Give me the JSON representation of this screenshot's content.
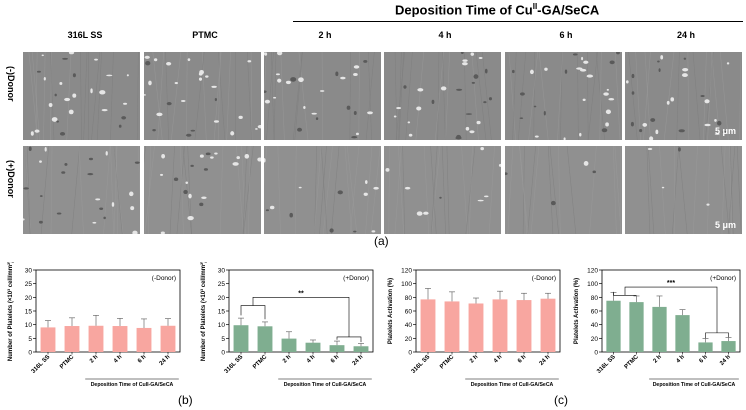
{
  "micrographs": {
    "group_title_prefix": "Deposition Time of Cu",
    "group_title_sup": "II",
    "group_title_suffix": "-GA/SeCA",
    "columns": [
      "316L SS",
      "PTMC",
      "2 h",
      "4 h",
      "6 h",
      "24 h"
    ],
    "rows": [
      "(-)Donor",
      "(+)Donor"
    ],
    "scale_bar": "5 μm",
    "panel_label": "(a)"
  },
  "panel_labels": {
    "b": "(b)",
    "c": "(c)"
  },
  "colors": {
    "pink": "#f8a6a0",
    "green": "#7fae90",
    "axis": "#000000"
  },
  "chart_data": [
    {
      "type": "bar",
      "id": "count-minus",
      "color": "pink",
      "categories": [
        "316L SS",
        "PTMC",
        "2 h",
        "4 h",
        "6 h",
        "24 h"
      ],
      "values": [
        9.0,
        9.5,
        9.6,
        9.5,
        8.8,
        9.6
      ],
      "errors": [
        2.5,
        3.0,
        3.8,
        2.8,
        3.3,
        2.6
      ],
      "ylabel": "Number of Platelets (×10³ cell/mm²)",
      "xlabel": "Deposition Time of CuII-GA/SeCA",
      "ylim": [
        0,
        30
      ],
      "yticks": [
        0,
        5,
        10,
        15,
        20,
        25,
        30
      ],
      "annotation": "(-Donor)",
      "brackets": []
    },
    {
      "type": "bar",
      "id": "count-plus",
      "color": "green",
      "categories": [
        "316L SS",
        "PTMC",
        "2 h",
        "4 h",
        "6 h",
        "24 h"
      ],
      "values": [
        9.8,
        9.4,
        4.9,
        3.4,
        2.5,
        2.1
      ],
      "errors": [
        2.6,
        1.6,
        2.5,
        1.0,
        1.5,
        1.0
      ],
      "ylabel": "Number of Platelets (×10³ cell/mm²)",
      "xlabel": "Deposition Time of CuII-GA/SeCA",
      "ylim": [
        0,
        30
      ],
      "yticks": [
        0,
        5,
        10,
        15,
        20,
        25,
        30
      ],
      "annotation": "(+Donor)",
      "brackets": [
        {
          "label": "**",
          "level": 20,
          "left": [
            0,
            1
          ],
          "right": [
            4,
            5
          ]
        }
      ]
    },
    {
      "type": "bar",
      "id": "act-minus",
      "color": "pink",
      "categories": [
        "316L SS",
        "PTMC",
        "2 h",
        "4 h",
        "6 h",
        "24 h"
      ],
      "values": [
        77,
        74,
        71,
        77,
        76,
        78
      ],
      "errors": [
        16,
        14,
        8,
        12,
        10,
        8
      ],
      "ylabel": "Platelets Activation (%)",
      "xlabel": "Deposition Time of CuII-GA/SeCA",
      "ylim": [
        0,
        120
      ],
      "yticks": [
        0,
        20,
        40,
        60,
        80,
        100,
        120
      ],
      "annotation": "(-Donor)",
      "brackets": []
    },
    {
      "type": "bar",
      "id": "act-plus",
      "color": "green",
      "categories": [
        "316L SS",
        "PTMC",
        "2 h",
        "4 h",
        "6 h",
        "24 h"
      ],
      "values": [
        75,
        73,
        66,
        54,
        14,
        16
      ],
      "errors": [
        12,
        9,
        16,
        8,
        6,
        5
      ],
      "ylabel": "Platelets Activation (%)",
      "xlabel": "Deposition Time of CuII-GA/SeCA",
      "ylim": [
        0,
        120
      ],
      "yticks": [
        0,
        20,
        40,
        60,
        80,
        100,
        120
      ],
      "annotation": "(+Donor)",
      "brackets": [
        {
          "label": "***",
          "level": 95,
          "left": [
            0,
            1
          ],
          "right": [
            4,
            5
          ]
        }
      ]
    }
  ]
}
